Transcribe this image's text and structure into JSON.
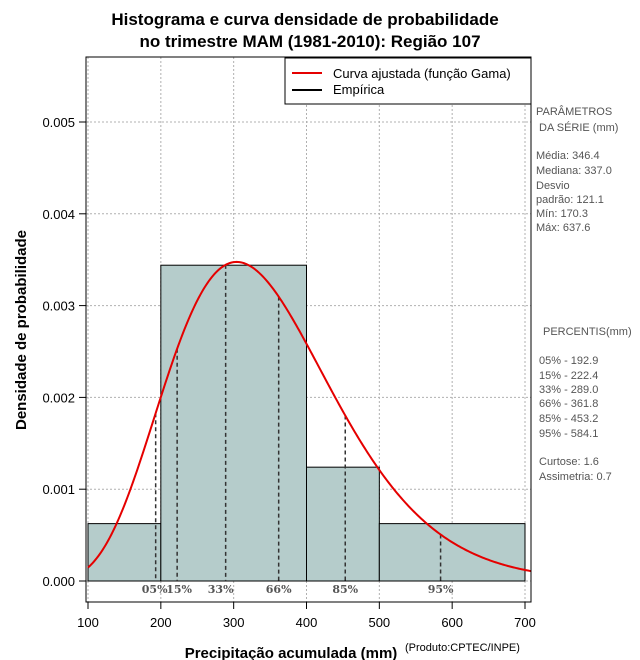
{
  "colors": {
    "bar_fill": "#b5cccb",
    "curve": "#e50000",
    "grid": "#b0b0b0",
    "text_gray": "#555555"
  },
  "chart_data": {
    "type": "bar",
    "title_lines": [
      "Histograma e curva densidade de probabilidade",
      "no trimestre MAM (1981-2010): Região 107"
    ],
    "xlabel": "Precipitação acumulada (mm)",
    "ylabel": "Densidade de probabilidade",
    "credit": "(Produto:CPTEC/INPE)",
    "xlim": [
      100,
      700
    ],
    "ylim": [
      0,
      0.0055
    ],
    "grid": true,
    "x_ticks": [
      100,
      200,
      300,
      400,
      500,
      600,
      700
    ],
    "x_tick_labels": [
      "100",
      "200",
      "300",
      "400",
      "500",
      "600",
      "700"
    ],
    "y_ticks": [
      0,
      0.001,
      0.002,
      0.003,
      0.004,
      0.005
    ],
    "y_tick_labels": [
      "0.000",
      "0.001",
      "0.002",
      "0.003",
      "0.004",
      "0.005"
    ],
    "histogram": [
      {
        "start": 100,
        "end": 200,
        "density": 0.000625
      },
      {
        "start": 200,
        "end": 400,
        "density": 0.00344
      },
      {
        "start": 400,
        "end": 500,
        "density": 0.00124
      },
      {
        "start": 500,
        "end": 700,
        "density": 0.000625
      }
    ],
    "fitted_curve": {
      "name": "Curva ajustada (função Gama)",
      "distribution": "gamma",
      "mean": 346.4,
      "sd": 121.1
    },
    "percentile_lines": [
      {
        "label": "05%",
        "x": 192.9
      },
      {
        "label": "15%",
        "x": 222.4
      },
      {
        "label": "33%",
        "x": 289.0
      },
      {
        "label": "66%",
        "x": 361.8
      },
      {
        "label": "85%",
        "x": 453.2
      },
      {
        "label": "95%",
        "x": 584.1
      }
    ],
    "legend": {
      "position": "top-right",
      "entries": [
        {
          "label": "Curva ajustada (função Gama)",
          "color": "#e50000"
        },
        {
          "label": "Empírica",
          "color": "#000000"
        }
      ]
    },
    "side_panel": {
      "param_header": [
        "PARÂMETROS",
        "DA SÉRIE (mm)"
      ],
      "params": [
        "Média:  346.4",
        "Mediana:  337.0",
        "Desvio",
        "padrão:  121.1",
        "Mín:  170.3",
        "Máx:  637.6"
      ],
      "percentile_header": "PERCENTIS(mm)",
      "percentiles": [
        "05% -  192.9",
        "15% -  222.4",
        "33% -  289.0",
        "66% -  361.8",
        "85% -  453.2",
        "95% -  584.1"
      ],
      "stats": [
        "Curtose:  1.6",
        "Assimetria:  0.7"
      ]
    }
  }
}
